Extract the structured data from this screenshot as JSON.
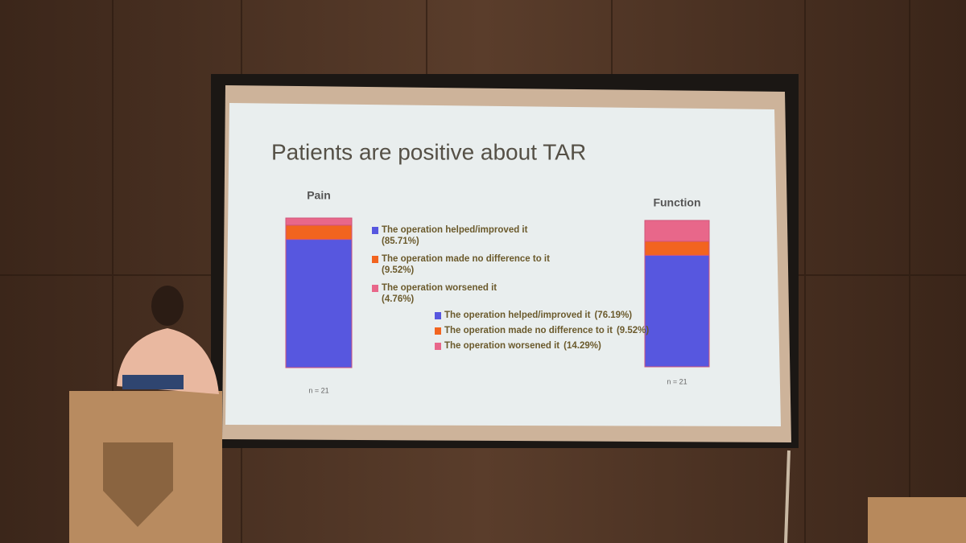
{
  "slide": {
    "title": "Patients are positive about TAR"
  },
  "chart_data": [
    {
      "type": "stacked-bar",
      "title": "Pain",
      "annotation": "n = 21",
      "ylim": [
        0,
        100
      ],
      "series": [
        {
          "name": "The operation helped/improved it",
          "color": "#5757df",
          "values": [
            85.71
          ],
          "value_labels": [
            "(85.71%)"
          ]
        },
        {
          "name": "The operation made no difference to it",
          "color": "#f2641f",
          "values": [
            9.52
          ],
          "value_labels": [
            "(9.52%)"
          ]
        },
        {
          "name": "The operation worsened it",
          "color": "#e8678a",
          "values": [
            4.76
          ],
          "value_labels": [
            "(4.76%)"
          ]
        }
      ]
    },
    {
      "type": "stacked-bar",
      "title": "Function",
      "annotation": "n = 21",
      "ylim": [
        0,
        100
      ],
      "series": [
        {
          "name": "The operation helped/improved it",
          "color": "#5757df",
          "values": [
            76.19
          ],
          "value_labels": [
            "(76.19%)"
          ]
        },
        {
          "name": "The operation made no difference to it",
          "color": "#f2641f",
          "values": [
            9.52
          ],
          "value_labels": [
            "(9.52%)"
          ]
        },
        {
          "name": "The operation worsened it",
          "color": "#e8678a",
          "values": [
            14.29
          ],
          "value_labels": [
            "(14.29%)"
          ]
        }
      ]
    }
  ]
}
